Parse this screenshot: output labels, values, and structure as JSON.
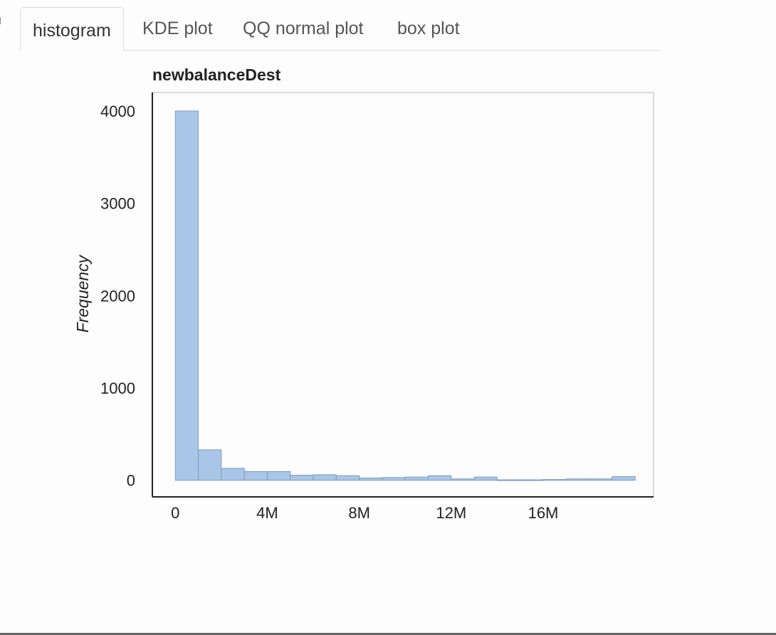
{
  "tabs": [
    {
      "label": "histogram",
      "active": true
    },
    {
      "label": "KDE plot",
      "active": false
    },
    {
      "label": "QQ normal plot",
      "active": false
    },
    {
      "label": "box plot",
      "active": false
    }
  ],
  "colors": {
    "bar_fill": "#a9c6e8",
    "bar_stroke": "#7d9cbf",
    "frame": "#c9cfd4",
    "axis": "#222222"
  },
  "chart_data": {
    "type": "bar",
    "title": "newbalanceDest",
    "xlabel": "",
    "ylabel": "Frequency",
    "bin_width": 1000000,
    "bin_starts": [
      0,
      1000000,
      2000000,
      3000000,
      4000000,
      5000000,
      6000000,
      7000000,
      8000000,
      9000000,
      10000000,
      11000000,
      12000000,
      13000000,
      14000000,
      15000000,
      16000000,
      17000000,
      18000000,
      19000000
    ],
    "values": [
      4000,
      330,
      130,
      95,
      95,
      55,
      60,
      50,
      25,
      30,
      35,
      50,
      15,
      35,
      5,
      5,
      8,
      15,
      15,
      40
    ],
    "xlim": [
      -1000000,
      20800000
    ],
    "ylim": [
      -180,
      4200
    ],
    "xticks": [
      0,
      4000000,
      8000000,
      12000000,
      16000000
    ],
    "xtick_labels": [
      "0",
      "4M",
      "8M",
      "12M",
      "16M"
    ],
    "yticks": [
      0,
      1000,
      2000,
      3000,
      4000
    ],
    "ytick_labels": [
      "0",
      "1000",
      "2000",
      "3000",
      "4000"
    ],
    "grid": false
  }
}
